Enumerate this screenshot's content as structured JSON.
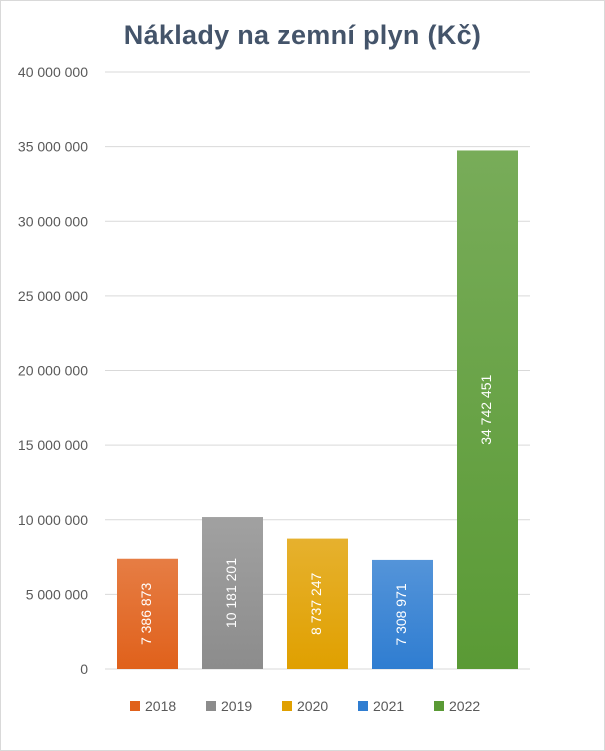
{
  "chart_data": {
    "type": "bar",
    "title": "Náklady na zemní plyn (Kč)",
    "xlabel": "",
    "ylabel": "",
    "ylim": [
      0,
      40000000
    ],
    "y_ticks": [
      0,
      5000000,
      10000000,
      15000000,
      20000000,
      25000000,
      30000000,
      35000000,
      40000000
    ],
    "y_tick_labels": [
      "0",
      "5 000 000",
      "10 000 000",
      "15 000 000",
      "20 000 000",
      "25 000 000",
      "30 000 000",
      "35 000 000",
      "40 000 000"
    ],
    "categories": [
      "2018",
      "2019",
      "2020",
      "2021",
      "2022"
    ],
    "values": [
      7386873,
      10181201,
      8737247,
      7308971,
      34742451
    ],
    "value_labels": [
      "7 386 873",
      "10 181 201",
      "8 737 247",
      "7 308 971",
      "34 742 451"
    ],
    "colors": [
      "#e0611b",
      "#8c8c8c",
      "#e0a000",
      "#2f7dd1",
      "#5a9a35"
    ],
    "grid": true,
    "legend": "bottom"
  }
}
